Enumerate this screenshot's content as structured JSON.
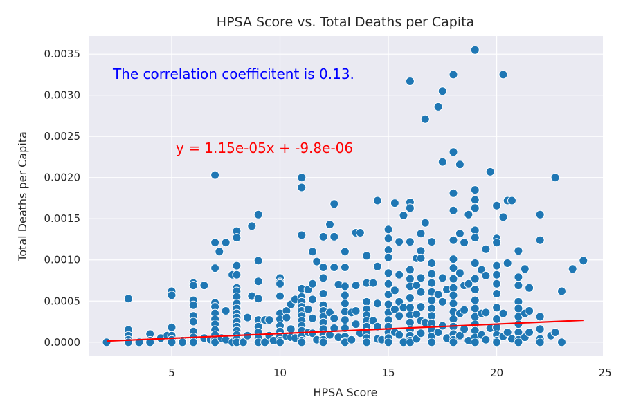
{
  "chart_data": {
    "type": "scatter",
    "title": "HPSA Score vs. Total Deaths per Capita",
    "xlabel": "HPSA Score",
    "ylabel": "Total Deaths per Capita",
    "xlim": [
      1.2,
      24.9
    ],
    "ylim": [
      -0.00017,
      0.00372
    ],
    "xticks": [
      5,
      10,
      15,
      20,
      25
    ],
    "yticks": [
      0.0,
      0.0005,
      0.001,
      0.0015,
      0.002,
      0.0025,
      0.003,
      0.0035
    ],
    "ytick_labels": [
      "0.0000",
      "0.0005",
      "0.0010",
      "0.0015",
      "0.0020",
      "0.0025",
      "0.0030",
      "0.0035"
    ],
    "grid": true,
    "annotations": {
      "correlation": "The correlation coefficitent is 0.13.",
      "equation": "y = 1.15e-05x + -9.8e-06"
    },
    "regression": {
      "slope": 1.15e-05,
      "intercept": -9.8e-06,
      "x_range": [
        2,
        24
      ]
    },
    "colors": {
      "background": "#eaeaf2",
      "points": "#1f77b4",
      "regression": "#ff0000",
      "correlation_text": "#0000ff",
      "equation_text": "#ff0000"
    },
    "points": [
      [
        2,
        0
      ],
      [
        3,
        0.00053
      ],
      [
        3,
        0.00015
      ],
      [
        3,
        8e-05
      ],
      [
        3,
        3e-05
      ],
      [
        3,
        0
      ],
      [
        3.5,
        0
      ],
      [
        4,
        0.0001
      ],
      [
        4,
        2e-05
      ],
      [
        4,
        0
      ],
      [
        4.5,
        5e-05
      ],
      [
        4.8,
        8e-05
      ],
      [
        5,
        0.00062
      ],
      [
        5,
        0.00057
      ],
      [
        5,
        0.00018
      ],
      [
        5,
        8e-05
      ],
      [
        5,
        3e-05
      ],
      [
        5,
        0
      ],
      [
        5.5,
        2e-05
      ],
      [
        5.5,
        0
      ],
      [
        6,
        0.00072
      ],
      [
        6,
        0.00069
      ],
      [
        6,
        0.00051
      ],
      [
        6,
        0.00045
      ],
      [
        6,
        0.00032
      ],
      [
        6,
        0.00025
      ],
      [
        6,
        0.00013
      ],
      [
        6,
        6e-05
      ],
      [
        6,
        0
      ],
      [
        6.5,
        0.00069
      ],
      [
        6.5,
        5e-05
      ],
      [
        6.8,
        3e-05
      ],
      [
        7,
        0.00203
      ],
      [
        7,
        0.00121
      ],
      [
        7,
        0.0009
      ],
      [
        7,
        0.00048
      ],
      [
        7,
        0.00043
      ],
      [
        7,
        0.00035
      ],
      [
        7,
        0.00028
      ],
      [
        7,
        0.00022
      ],
      [
        7,
        0.00015
      ],
      [
        7,
        9e-05
      ],
      [
        7,
        3e-05
      ],
      [
        7,
        0
      ],
      [
        7.2,
        0.0011
      ],
      [
        7.3,
        5e-05
      ],
      [
        7.5,
        0.00121
      ],
      [
        7.5,
        0.00038
      ],
      [
        7.5,
        3e-05
      ],
      [
        7.8,
        0.00082
      ],
      [
        7.8,
        0
      ],
      [
        8,
        0.00135
      ],
      [
        8,
        0.00127
      ],
      [
        8,
        0.00093
      ],
      [
        8,
        0.00082
      ],
      [
        8,
        0.00066
      ],
      [
        8,
        0.00062
      ],
      [
        8,
        0.00055
      ],
      [
        8,
        0.00047
      ],
      [
        8,
        0.00041
      ],
      [
        8,
        0.00035
      ],
      [
        8,
        0.0003
      ],
      [
        8,
        0.00025
      ],
      [
        8,
        0.00019
      ],
      [
        8,
        0.00014
      ],
      [
        8,
        9e-05
      ],
      [
        8,
        4e-05
      ],
      [
        8,
        0
      ],
      [
        8.3,
        0
      ],
      [
        8.5,
        0.0003
      ],
      [
        8.5,
        8e-05
      ],
      [
        8.7,
        0.00141
      ],
      [
        8.7,
        0.00056
      ],
      [
        9,
        0.00155
      ],
      [
        9,
        0.00099
      ],
      [
        9,
        0.00074
      ],
      [
        9,
        0.00053
      ],
      [
        9,
        0.00027
      ],
      [
        9,
        0.00019
      ],
      [
        9,
        0.00012
      ],
      [
        9,
        5e-05
      ],
      [
        9,
        0
      ],
      [
        9.3,
        0.00027
      ],
      [
        9.3,
        0
      ],
      [
        9.5,
        0.00027
      ],
      [
        9.5,
        8e-05
      ],
      [
        9.7,
        2e-05
      ],
      [
        10,
        0.00078
      ],
      [
        10,
        0.00073
      ],
      [
        10,
        0.00071
      ],
      [
        10,
        0.00056
      ],
      [
        10,
        0.00035
      ],
      [
        10,
        0.00028
      ],
      [
        10,
        0.0002
      ],
      [
        10,
        0.00013
      ],
      [
        10,
        7e-05
      ],
      [
        10,
        2e-05
      ],
      [
        10,
        0
      ],
      [
        10.3,
        0.00038
      ],
      [
        10.3,
        0.0003
      ],
      [
        10.3,
        7e-05
      ],
      [
        10.5,
        0.00046
      ],
      [
        10.5,
        0.00016
      ],
      [
        10.5,
        6e-05
      ],
      [
        10.7,
        0.00052
      ],
      [
        10.7,
        5e-05
      ],
      [
        11,
        0.002
      ],
      [
        11,
        0.00188
      ],
      [
        11,
        0.0013
      ],
      [
        11,
        0.00065
      ],
      [
        11,
        0.00055
      ],
      [
        11,
        0.00049
      ],
      [
        11,
        0.00043
      ],
      [
        11,
        0.00038
      ],
      [
        11,
        0.00032
      ],
      [
        11,
        0.00026
      ],
      [
        11,
        0.0002
      ],
      [
        11,
        0.00014
      ],
      [
        11,
        7e-05
      ],
      [
        11,
        2e-05
      ],
      [
        11,
        0
      ],
      [
        11.3,
        0.00064
      ],
      [
        11.3,
        0.0004
      ],
      [
        11.3,
        0.00012
      ],
      [
        11.5,
        0.0011
      ],
      [
        11.5,
        0.00071
      ],
      [
        11.5,
        0.00052
      ],
      [
        11.5,
        0.00029
      ],
      [
        11.5,
        0.00011
      ],
      [
        11.7,
        0.00098
      ],
      [
        11.7,
        3e-05
      ],
      [
        12,
        0.00128
      ],
      [
        12,
        0.00091
      ],
      [
        12,
        0.00078
      ],
      [
        12,
        0.00059
      ],
      [
        12,
        0.00045
      ],
      [
        12,
        0.00038
      ],
      [
        12,
        0.00031
      ],
      [
        12,
        0.00024
      ],
      [
        12,
        0.00016
      ],
      [
        12,
        9e-05
      ],
      [
        12,
        3e-05
      ],
      [
        12,
        0
      ],
      [
        12.3,
        0.00143
      ],
      [
        12.3,
        0.00036
      ],
      [
        12.3,
        9e-05
      ],
      [
        12.5,
        0.00168
      ],
      [
        12.5,
        0.00128
      ],
      [
        12.5,
        0.00091
      ],
      [
        12.5,
        0.00029
      ],
      [
        12.5,
        0.00017
      ],
      [
        12.7,
        0.0007
      ],
      [
        12.7,
        6e-05
      ],
      [
        13,
        0.0011
      ],
      [
        13,
        0.00091
      ],
      [
        13,
        0.00068
      ],
      [
        13,
        0.00057
      ],
      [
        13,
        0.00047
      ],
      [
        13,
        0.00037
      ],
      [
        13,
        0.00027
      ],
      [
        13,
        0.00017
      ],
      [
        13,
        7e-05
      ],
      [
        13,
        1e-05
      ],
      [
        13,
        0
      ],
      [
        13.3,
        0.00036
      ],
      [
        13.3,
        3e-05
      ],
      [
        13.5,
        0.00133
      ],
      [
        13.5,
        0.00069
      ],
      [
        13.5,
        0.00038
      ],
      [
        13.5,
        0.00022
      ],
      [
        13.7,
        0.00133
      ],
      [
        13.7,
        0.00011
      ],
      [
        14,
        0.00105
      ],
      [
        14,
        0.00072
      ],
      [
        14,
        0.00049
      ],
      [
        14,
        0.0004
      ],
      [
        14,
        0.00033
      ],
      [
        14,
        0.00026
      ],
      [
        14,
        0.00019
      ],
      [
        14,
        0.00012
      ],
      [
        14,
        5e-05
      ],
      [
        14,
        0
      ],
      [
        14.3,
        0.00072
      ],
      [
        14.3,
        0.00026
      ],
      [
        14.5,
        0.00172
      ],
      [
        14.5,
        0.00092
      ],
      [
        14.5,
        0.00047
      ],
      [
        14.5,
        0.00019
      ],
      [
        14.5,
        4e-05
      ],
      [
        14.7,
        3e-05
      ],
      [
        15,
        0.00137
      ],
      [
        15,
        0.00126
      ],
      [
        15,
        0.00112
      ],
      [
        15,
        0.00103
      ],
      [
        15,
        0.00084
      ],
      [
        15,
        0.00071
      ],
      [
        15,
        0.00058
      ],
      [
        15,
        0.00046
      ],
      [
        15,
        0.00036
      ],
      [
        15,
        0.00027
      ],
      [
        15,
        0.00019
      ],
      [
        15,
        0.00012
      ],
      [
        15,
        5e-05
      ],
      [
        15,
        0
      ],
      [
        15.3,
        0.00169
      ],
      [
        15.3,
        0.00063
      ],
      [
        15.3,
        0.0004
      ],
      [
        15.3,
        0.00012
      ],
      [
        15.5,
        0.00122
      ],
      [
        15.5,
        0.00082
      ],
      [
        15.5,
        0.00049
      ],
      [
        15.5,
        0.00032
      ],
      [
        15.5,
        9e-05
      ],
      [
        15.7,
        0.00154
      ],
      [
        15.7,
        0.00042
      ],
      [
        15.7,
        0
      ],
      [
        16,
        0.00317
      ],
      [
        16,
        0.0017
      ],
      [
        16,
        0.00163
      ],
      [
        16,
        0.00122
      ],
      [
        16,
        0.00088
      ],
      [
        16,
        0.00077
      ],
      [
        16,
        0.00068
      ],
      [
        16,
        0.00054
      ],
      [
        16,
        0.00042
      ],
      [
        16,
        0.00033
      ],
      [
        16,
        0.00024
      ],
      [
        16,
        0.00015
      ],
      [
        16,
        8e-05
      ],
      [
        16,
        2e-05
      ],
      [
        16,
        0
      ],
      [
        16.3,
        0.00102
      ],
      [
        16.3,
        0.00069
      ],
      [
        16.3,
        0.00034
      ],
      [
        16.3,
        4e-05
      ],
      [
        16.5,
        0.00132
      ],
      [
        16.5,
        0.00111
      ],
      [
        16.5,
        0.00102
      ],
      [
        16.5,
        0.00078
      ],
      [
        16.5,
        0.00061
      ],
      [
        16.5,
        0.00043
      ],
      [
        16.5,
        0.00026
      ],
      [
        16.5,
        0.00011
      ],
      [
        16.7,
        0.00271
      ],
      [
        16.7,
        0.00145
      ],
      [
        16.7,
        0.00024
      ],
      [
        17,
        0.00122
      ],
      [
        17,
        0.00096
      ],
      [
        17,
        0.00083
      ],
      [
        17,
        0.00072
      ],
      [
        17,
        0.00061
      ],
      [
        17,
        0.00051
      ],
      [
        17,
        0.00041
      ],
      [
        17,
        0.00032
      ],
      [
        17,
        0.00023
      ],
      [
        17,
        0.00015
      ],
      [
        17,
        7e-05
      ],
      [
        17,
        0
      ],
      [
        17.3,
        0.00286
      ],
      [
        17.3,
        0.00058
      ],
      [
        17.3,
        0.00012
      ],
      [
        17.5,
        0.00305
      ],
      [
        17.5,
        0.00219
      ],
      [
        17.5,
        0.00078
      ],
      [
        17.5,
        0.00049
      ],
      [
        17.5,
        0.0002
      ],
      [
        17.7,
        0.00064
      ],
      [
        17.7,
        5e-05
      ],
      [
        18,
        0.00325
      ],
      [
        18,
        0.00231
      ],
      [
        18,
        0.00181
      ],
      [
        18,
        0.0016
      ],
      [
        18,
        0.00124
      ],
      [
        18,
        0.00101
      ],
      [
        18,
        0.0009
      ],
      [
        18,
        0.00077
      ],
      [
        18,
        0.00066
      ],
      [
        18,
        0.00057
      ],
      [
        18,
        0.00047
      ],
      [
        18,
        0.00037
      ],
      [
        18,
        0.00028
      ],
      [
        18,
        0.00019
      ],
      [
        18,
        0.0001
      ],
      [
        18,
        3e-05
      ],
      [
        18,
        0
      ],
      [
        18.3,
        0.00216
      ],
      [
        18.3,
        0.00132
      ],
      [
        18.3,
        0.00084
      ],
      [
        18.3,
        0.00035
      ],
      [
        18.3,
        8e-05
      ],
      [
        18.5,
        0.00121
      ],
      [
        18.5,
        0.00069
      ],
      [
        18.5,
        0.00039
      ],
      [
        18.5,
        0.00016
      ],
      [
        18.7,
        0.00155
      ],
      [
        18.7,
        0.00071
      ],
      [
        18.7,
        2e-05
      ],
      [
        19,
        0.00355
      ],
      [
        19,
        0.00185
      ],
      [
        19,
        0.00173
      ],
      [
        19,
        0.00163
      ],
      [
        19,
        0.00136
      ],
      [
        19,
        0.00127
      ],
      [
        19,
        0.00096
      ],
      [
        19,
        0.00077
      ],
      [
        19,
        0.00064
      ],
      [
        19,
        0.00051
      ],
      [
        19,
        0.00041
      ],
      [
        19,
        0.00031
      ],
      [
        19,
        0.00022
      ],
      [
        19,
        0.00014
      ],
      [
        19,
        6e-05
      ],
      [
        19,
        0
      ],
      [
        19.3,
        0.00088
      ],
      [
        19.3,
        0.00035
      ],
      [
        19.3,
        9e-05
      ],
      [
        19.5,
        0.00113
      ],
      [
        19.5,
        0.00081
      ],
      [
        19.5,
        0.00036
      ],
      [
        19.5,
        3e-05
      ],
      [
        19.7,
        0.00207
      ],
      [
        19.7,
        0.00017
      ],
      [
        20,
        0.00166
      ],
      [
        20,
        0.00126
      ],
      [
        20,
        0.00121
      ],
      [
        20,
        0.00093
      ],
      [
        20,
        0.00082
      ],
      [
        20,
        0.00071
      ],
      [
        20,
        0.00059
      ],
      [
        20,
        0.00042
      ],
      [
        20,
        0.00028
      ],
      [
        20,
        0.00018
      ],
      [
        20,
        9e-05
      ],
      [
        20,
        2e-05
      ],
      [
        20,
        0
      ],
      [
        20.3,
        0.00325
      ],
      [
        20.3,
        0.00152
      ],
      [
        20.3,
        0.00035
      ],
      [
        20.3,
        7e-05
      ],
      [
        20.5,
        0.00172
      ],
      [
        20.5,
        0.00096
      ],
      [
        20.5,
        0.00012
      ],
      [
        20.7,
        0.00172
      ],
      [
        20.7,
        4e-05
      ],
      [
        21,
        0.00111
      ],
      [
        21,
        0.00079
      ],
      [
        21,
        0.00069
      ],
      [
        21,
        0.00049
      ],
      [
        21,
        0.00041
      ],
      [
        21,
        0.00031
      ],
      [
        21,
        0.00022
      ],
      [
        21,
        0.00012
      ],
      [
        21,
        3e-05
      ],
      [
        21,
        0
      ],
      [
        21.3,
        0.00089
      ],
      [
        21.3,
        0.00035
      ],
      [
        21.3,
        6e-05
      ],
      [
        21.5,
        0.00066
      ],
      [
        21.5,
        0.00038
      ],
      [
        21.5,
        0.00012
      ],
      [
        22,
        0.00155
      ],
      [
        22,
        0.00124
      ],
      [
        22,
        0.00031
      ],
      [
        22,
        0.00016
      ],
      [
        22,
        4e-05
      ],
      [
        22,
        0
      ],
      [
        22.5,
        8e-05
      ],
      [
        22.7,
        0.002
      ],
      [
        22.7,
        0.00012
      ],
      [
        23,
        0.00062
      ],
      [
        23,
        0
      ],
      [
        23.5,
        0.00089
      ],
      [
        24,
        0.00099
      ]
    ]
  }
}
